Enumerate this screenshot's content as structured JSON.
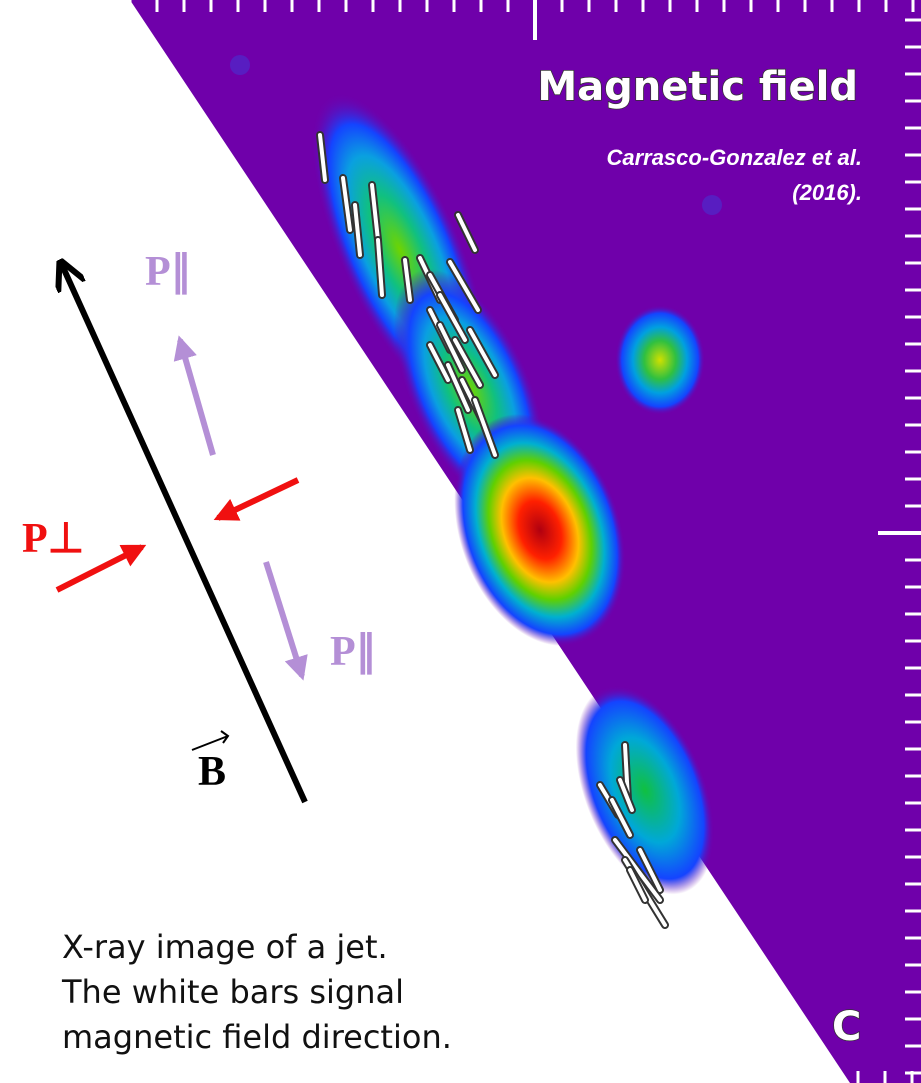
{
  "panel": {
    "title": "Magnetic field",
    "citation": [
      "Carrasco-Gonzalez et al.",
      "(2016)."
    ],
    "label": "C"
  },
  "annotations": {
    "p_parallel_top": "P∥",
    "p_perpendicular": "P⊥",
    "p_parallel_bottom": "P∥",
    "field": "B"
  },
  "caption": [
    "X-ray image of a jet.",
    "The white bars signal",
    "magnetic field direction."
  ]
}
